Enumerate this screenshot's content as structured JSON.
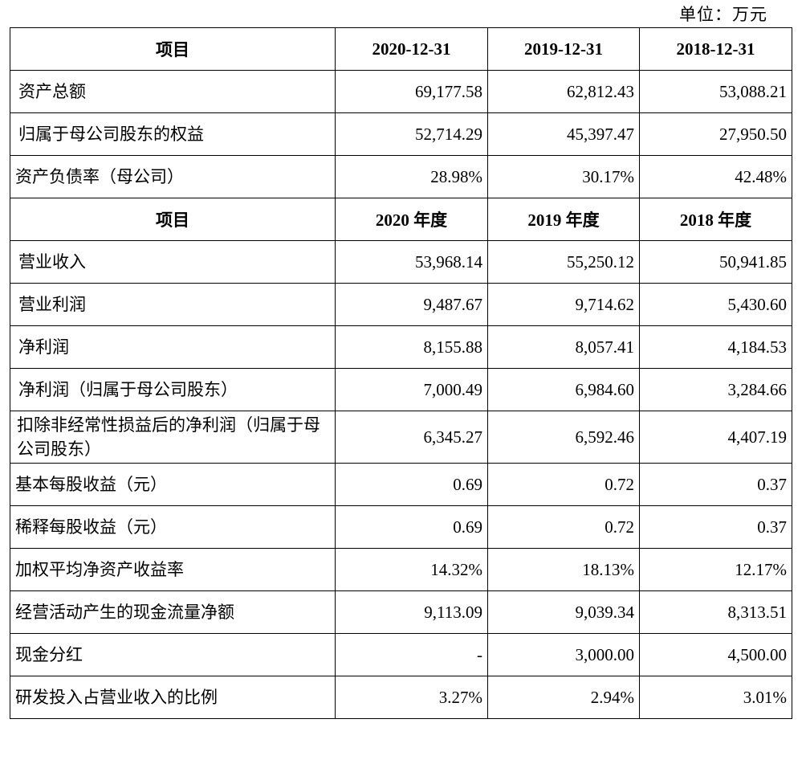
{
  "unit_label": "单位：万元",
  "section1": {
    "headers": [
      "项目",
      "2020-12-31",
      "2019-12-31",
      "2018-12-31"
    ],
    "rows": [
      {
        "label": "资产总额",
        "values": [
          "69,177.58",
          "62,812.43",
          "53,088.21"
        ]
      },
      {
        "label": "归属于母公司股东的权益",
        "values": [
          "52,714.29",
          "45,397.47",
          "27,950.50"
        ]
      },
      {
        "label": "资产负债率（母公司）",
        "values": [
          "28.98%",
          "30.17%",
          "42.48%"
        ]
      }
    ]
  },
  "section2": {
    "headers": [
      "项目",
      "2020 年度",
      "2019 年度",
      "2018 年度"
    ],
    "rows": [
      {
        "label": "营业收入",
        "values": [
          "53,968.14",
          "55,250.12",
          "50,941.85"
        ]
      },
      {
        "label": "营业利润",
        "values": [
          "9,487.67",
          "9,714.62",
          "5,430.60"
        ]
      },
      {
        "label": "净利润",
        "values": [
          "8,155.88",
          "8,057.41",
          "4,184.53"
        ]
      },
      {
        "label": "净利润（归属于母公司股东）",
        "values": [
          "7,000.49",
          "6,984.60",
          "3,284.66"
        ]
      },
      {
        "label": "扣除非经常性损益后的净利润（归属于母公司股东）",
        "values": [
          "6,345.27",
          "6,592.46",
          "4,407.19"
        ]
      },
      {
        "label": "基本每股收益（元）",
        "values": [
          "0.69",
          "0.72",
          "0.37"
        ]
      },
      {
        "label": "稀释每股收益（元）",
        "values": [
          "0.69",
          "0.72",
          "0.37"
        ]
      },
      {
        "label": "加权平均净资产收益率",
        "values": [
          "14.32%",
          "18.13%",
          "12.17%"
        ]
      },
      {
        "label": "经营活动产生的现金流量净额",
        "values": [
          "9,113.09",
          "9,039.34",
          "8,313.51"
        ]
      },
      {
        "label": "现金分红",
        "values": [
          "-",
          "3,000.00",
          "4,500.00"
        ]
      },
      {
        "label": "研发投入占营业收入的比例",
        "values": [
          "3.27%",
          "2.94%",
          "3.01%"
        ]
      }
    ]
  }
}
